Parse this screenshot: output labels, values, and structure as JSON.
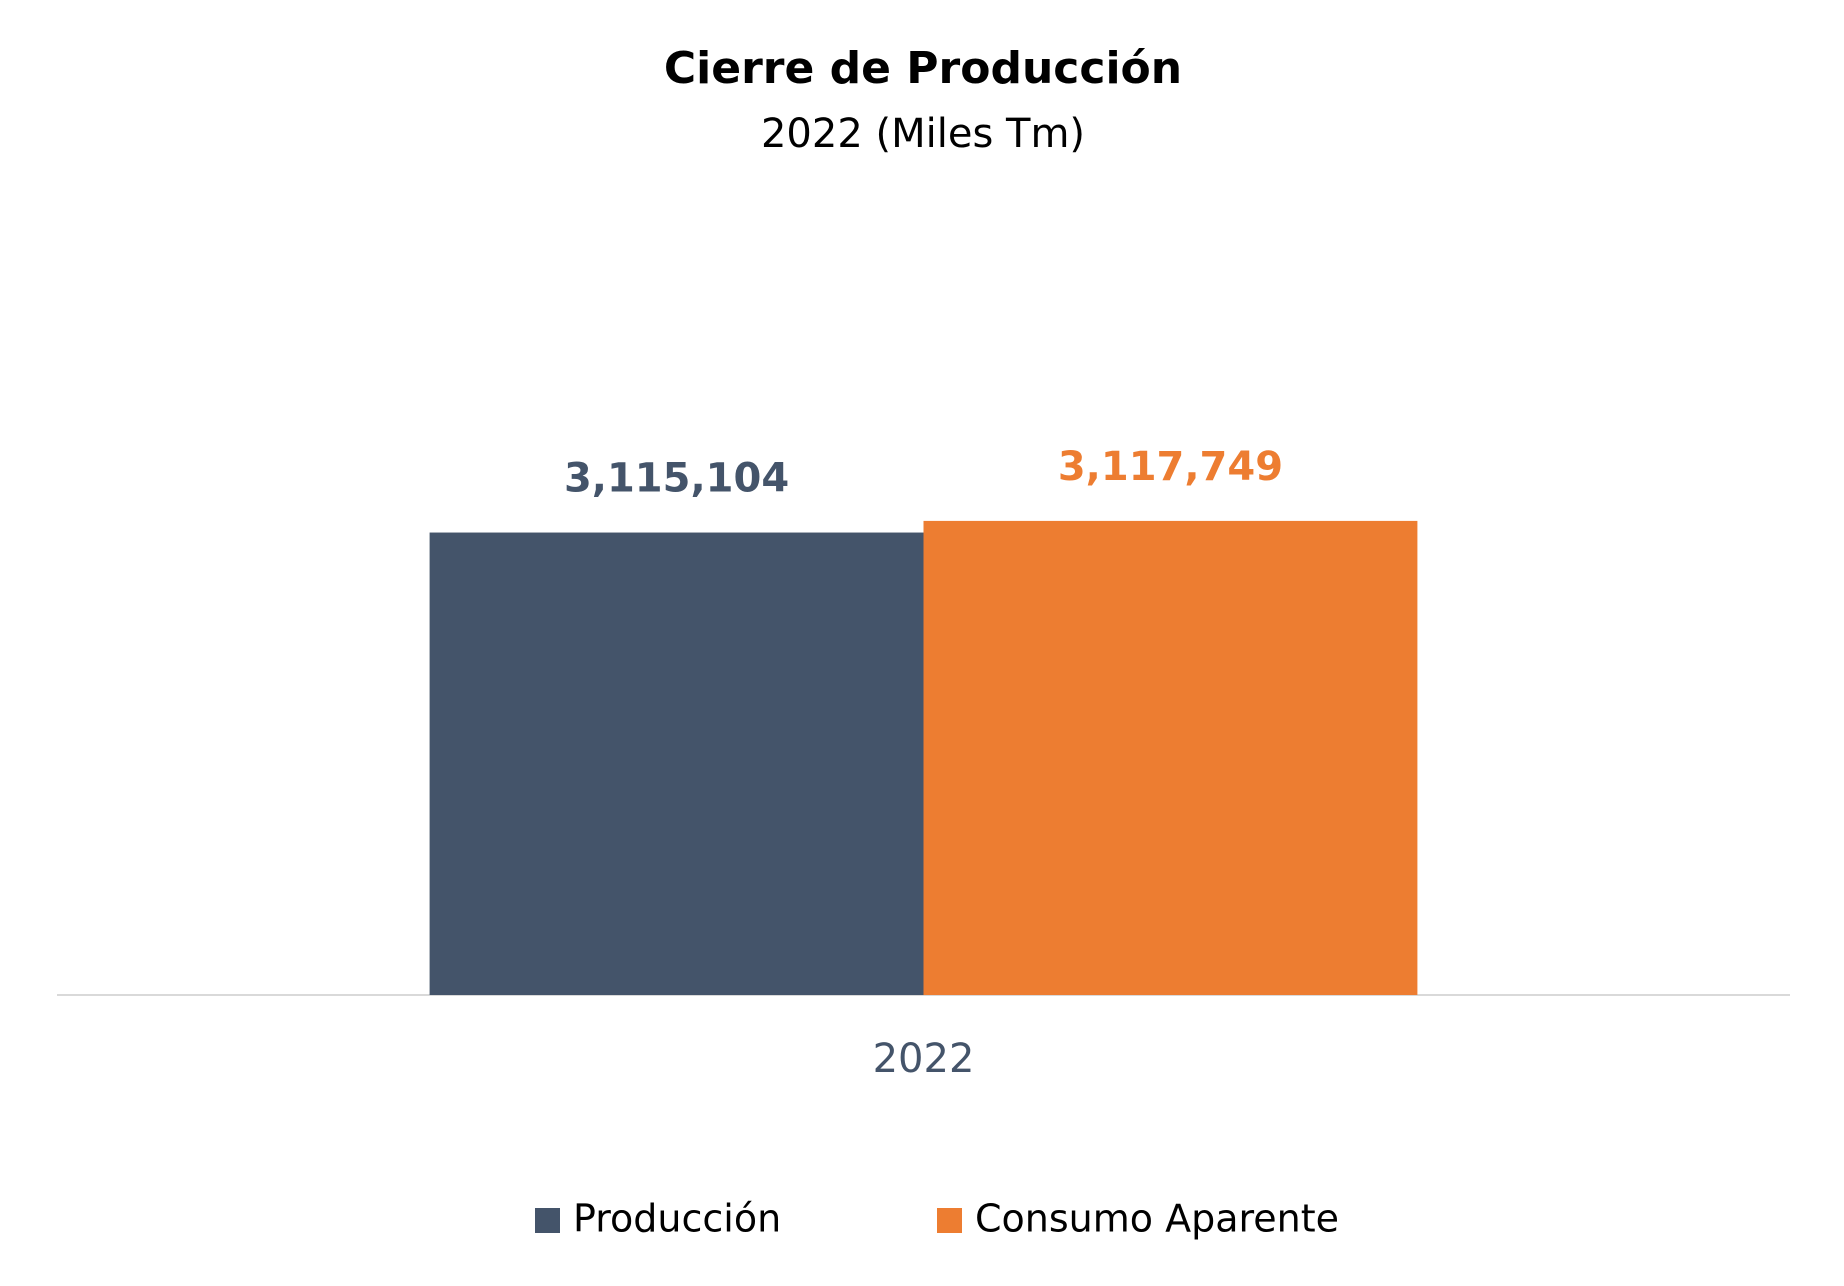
{
  "chart_data": {
    "type": "bar",
    "title": "Cierre de Producción",
    "subtitle": "2022 (Miles Tm)",
    "categories": [
      "2022"
    ],
    "series": [
      {
        "name": "Producción",
        "color": "#44546a",
        "values": [
          3115104
        ],
        "value_labels": [
          "3,115,104"
        ]
      },
      {
        "name": "Consumo Aparente",
        "color": "#ed7d31",
        "values": [
          3117749
        ],
        "value_labels": [
          "3,117,749"
        ]
      }
    ],
    "ylim": [
      3010000,
      3130000
    ],
    "legend": "bottom"
  }
}
